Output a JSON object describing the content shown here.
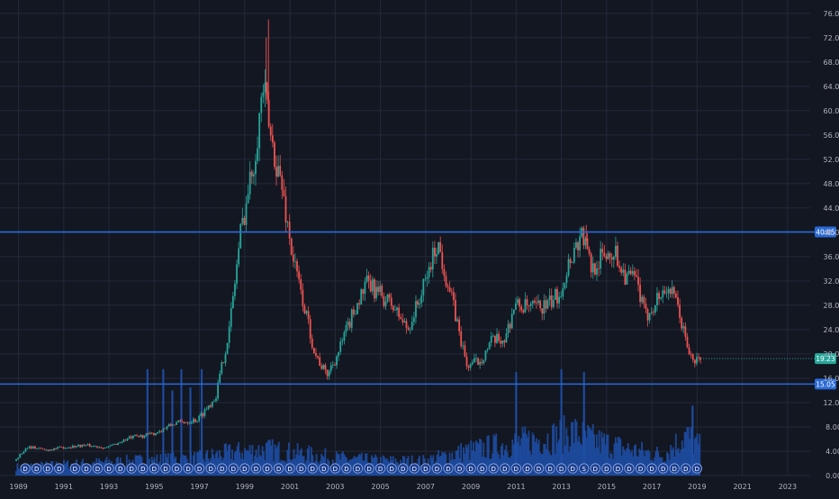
{
  "chart_data": {
    "type": "candlestick",
    "title": "",
    "x_ticks": [
      "1989",
      "1991",
      "1993",
      "1995",
      "1997",
      "1999",
      "2001",
      "2003",
      "2005",
      "2007",
      "2009",
      "2011",
      "2013",
      "2015",
      "2017",
      "2019",
      "2021",
      "2023"
    ],
    "y_ticks": [
      "0.00",
      "4.00",
      "8.00",
      "12.00",
      "16.00",
      "20.00",
      "24.00",
      "28.00",
      "32.00",
      "36.00",
      "40.00",
      "44.00",
      "48.00",
      "52.00",
      "56.00",
      "60.00",
      "64.00",
      "68.00",
      "72.00",
      "76.00"
    ],
    "y_range": [
      0,
      77
    ],
    "x_range": [
      1988.5,
      2024.0
    ],
    "price_labels": [
      {
        "label": "40.05",
        "value": 40.05,
        "kind": "horizontal-line"
      },
      {
        "label": "19.23",
        "value": 19.23,
        "kind": "last-price"
      },
      {
        "label": "15.05",
        "value": 15.05,
        "kind": "horizontal-line"
      }
    ],
    "price_anchors": [
      [
        1988.9,
        2.4
      ],
      [
        1989.5,
        4.8
      ],
      [
        1990.3,
        4.2
      ],
      [
        1991.0,
        4.6
      ],
      [
        1992.0,
        5.0
      ],
      [
        1993.0,
        4.6
      ],
      [
        1994.0,
        6.2
      ],
      [
        1995.0,
        6.8
      ],
      [
        1996.0,
        8.6
      ],
      [
        1997.0,
        9.2
      ],
      [
        1997.8,
        13.0
      ],
      [
        1998.4,
        24.0
      ],
      [
        1998.9,
        40.0
      ],
      [
        1999.5,
        52.0
      ],
      [
        1999.9,
        64.0
      ],
      [
        2000.2,
        56.0
      ],
      [
        2000.7,
        48.0
      ],
      [
        2001.2,
        36.0
      ],
      [
        2001.7,
        28.0
      ],
      [
        2002.2,
        20.0
      ],
      [
        2002.7,
        16.5
      ],
      [
        2003.2,
        20.0
      ],
      [
        2004.0,
        28.0
      ],
      [
        2004.5,
        31.5
      ],
      [
        2005.0,
        30.0
      ],
      [
        2005.6,
        28.0
      ],
      [
        2006.3,
        24.0
      ],
      [
        2007.0,
        31.0
      ],
      [
        2007.6,
        38.5
      ],
      [
        2008.3,
        28.0
      ],
      [
        2008.9,
        18.0
      ],
      [
        2009.5,
        19.0
      ],
      [
        2010.0,
        22.0
      ],
      [
        2010.6,
        22.5
      ],
      [
        2011.0,
        28.0
      ],
      [
        2011.8,
        27.5
      ],
      [
        2012.5,
        28.0
      ],
      [
        2013.0,
        30.0
      ],
      [
        2013.5,
        36.0
      ],
      [
        2014.0,
        40.0
      ],
      [
        2014.4,
        34.0
      ],
      [
        2014.9,
        36.0
      ],
      [
        2015.4,
        37.0
      ],
      [
        2015.9,
        33.0
      ],
      [
        2016.4,
        32.0
      ],
      [
        2016.8,
        26.0
      ],
      [
        2017.3,
        29.0
      ],
      [
        2017.8,
        31.0
      ],
      [
        2018.2,
        28.0
      ],
      [
        2018.6,
        22.0
      ],
      [
        2018.9,
        18.5
      ],
      [
        2019.1,
        19.2
      ]
    ],
    "spikes": [
      {
        "x": 2000.05,
        "high": 75.0
      },
      {
        "x": 1999.95,
        "high": 72.0
      },
      {
        "x": 2014.1,
        "high": 41.2
      }
    ],
    "volume_profile": [
      [
        1989.0,
        1.5
      ],
      [
        1994.0,
        2.5
      ],
      [
        1997.0,
        3.0
      ],
      [
        1998.5,
        4.0
      ],
      [
        2000.0,
        4.5
      ],
      [
        2001.0,
        4.0
      ],
      [
        2002.0,
        3.5
      ],
      [
        2003.0,
        3.0
      ],
      [
        2005.0,
        2.5
      ],
      [
        2007.0,
        2.5
      ],
      [
        2008.5,
        4.0
      ],
      [
        2010.0,
        5.0
      ],
      [
        2011.5,
        6.0
      ],
      [
        2012.5,
        6.5
      ],
      [
        2013.5,
        7.5
      ],
      [
        2014.5,
        6.0
      ],
      [
        2016.0,
        4.5
      ],
      [
        2017.5,
        3.5
      ],
      [
        2018.5,
        7.0
      ],
      [
        2019.1,
        5.0
      ]
    ],
    "volume_spikes": [
      {
        "x": 1994.7,
        "v": 17.5
      },
      {
        "x": 1995.4,
        "v": 17.5
      },
      {
        "x": 1995.8,
        "v": 14.0
      },
      {
        "x": 1996.2,
        "v": 17.5
      },
      {
        "x": 1996.6,
        "v": 14.5
      },
      {
        "x": 1997.1,
        "v": 17.5
      },
      {
        "x": 2011.0,
        "v": 17.0
      },
      {
        "x": 2013.0,
        "v": 17.5
      },
      {
        "x": 2014.0,
        "v": 17.0
      },
      {
        "x": 2018.8,
        "v": 11.5
      }
    ],
    "markers": [
      {
        "x": 1989.3,
        "label": "D"
      },
      {
        "x": 1989.8,
        "label": "D"
      },
      {
        "x": 1990.3,
        "label": "D"
      },
      {
        "x": 1990.8,
        "label": "D"
      },
      {
        "x": 1991.5,
        "label": "D"
      },
      {
        "x": 1992.0,
        "label": "D"
      },
      {
        "x": 1992.5,
        "label": "D"
      },
      {
        "x": 1993.0,
        "label": "D"
      },
      {
        "x": 1993.5,
        "label": "D"
      },
      {
        "x": 1994.0,
        "label": "D"
      },
      {
        "x": 1994.5,
        "label": "D"
      },
      {
        "x": 1995.0,
        "label": "D"
      },
      {
        "x": 1995.5,
        "label": "D"
      },
      {
        "x": 1996.0,
        "label": "D"
      },
      {
        "x": 1996.5,
        "label": "D"
      },
      {
        "x": 1997.0,
        "label": "D"
      },
      {
        "x": 1997.5,
        "label": "D"
      },
      {
        "x": 1998.0,
        "label": "D"
      },
      {
        "x": 1998.5,
        "label": "D"
      },
      {
        "x": 1999.0,
        "label": "D"
      },
      {
        "x": 1999.5,
        "label": "D"
      },
      {
        "x": 2000.0,
        "label": "D"
      },
      {
        "x": 2000.5,
        "label": "D"
      },
      {
        "x": 2001.0,
        "label": "D"
      },
      {
        "x": 2001.5,
        "label": "D"
      },
      {
        "x": 2002.0,
        "label": "D"
      },
      {
        "x": 2002.5,
        "label": "D"
      },
      {
        "x": 2003.0,
        "label": "D"
      },
      {
        "x": 2003.5,
        "label": "D"
      },
      {
        "x": 2004.0,
        "label": "D"
      },
      {
        "x": 2004.5,
        "label": "D"
      },
      {
        "x": 2005.0,
        "label": "D"
      },
      {
        "x": 2005.5,
        "label": "D"
      },
      {
        "x": 2006.0,
        "label": "D"
      },
      {
        "x": 2006.5,
        "label": "D"
      },
      {
        "x": 2007.0,
        "label": "D"
      },
      {
        "x": 2007.5,
        "label": "D"
      },
      {
        "x": 2008.0,
        "label": "D"
      },
      {
        "x": 2008.5,
        "label": "D"
      },
      {
        "x": 2009.0,
        "label": "D"
      },
      {
        "x": 2009.5,
        "label": "D"
      },
      {
        "x": 2010.0,
        "label": "D"
      },
      {
        "x": 2010.5,
        "label": "D"
      },
      {
        "x": 2011.0,
        "label": "D"
      },
      {
        "x": 2011.5,
        "label": "D"
      },
      {
        "x": 2012.0,
        "label": "D"
      },
      {
        "x": 2012.5,
        "label": "D"
      },
      {
        "x": 2013.0,
        "label": "D"
      },
      {
        "x": 2013.5,
        "label": "D"
      },
      {
        "x": 2014.0,
        "label": "S"
      },
      {
        "x": 2014.5,
        "label": "D"
      },
      {
        "x": 2015.0,
        "label": "D"
      },
      {
        "x": 2015.5,
        "label": "D"
      },
      {
        "x": 2016.0,
        "label": "D"
      },
      {
        "x": 2016.5,
        "label": "D"
      },
      {
        "x": 2017.0,
        "label": "D"
      },
      {
        "x": 2017.5,
        "label": "D"
      },
      {
        "x": 2018.0,
        "label": "D"
      },
      {
        "x": 2018.5,
        "label": "D"
      },
      {
        "x": 2019.0,
        "label": "D"
      }
    ]
  },
  "colors": {
    "background": "#131722",
    "grid": "#242938",
    "axis_text": "#b2b5be",
    "up": "#26a69a",
    "down": "#ef5350",
    "volume": "#1e4fa8",
    "hline": "#2a6ad6",
    "last_price": "#26a69a",
    "marker_fill": "#1a3d8f",
    "marker_stroke": "#8fa8e0"
  }
}
